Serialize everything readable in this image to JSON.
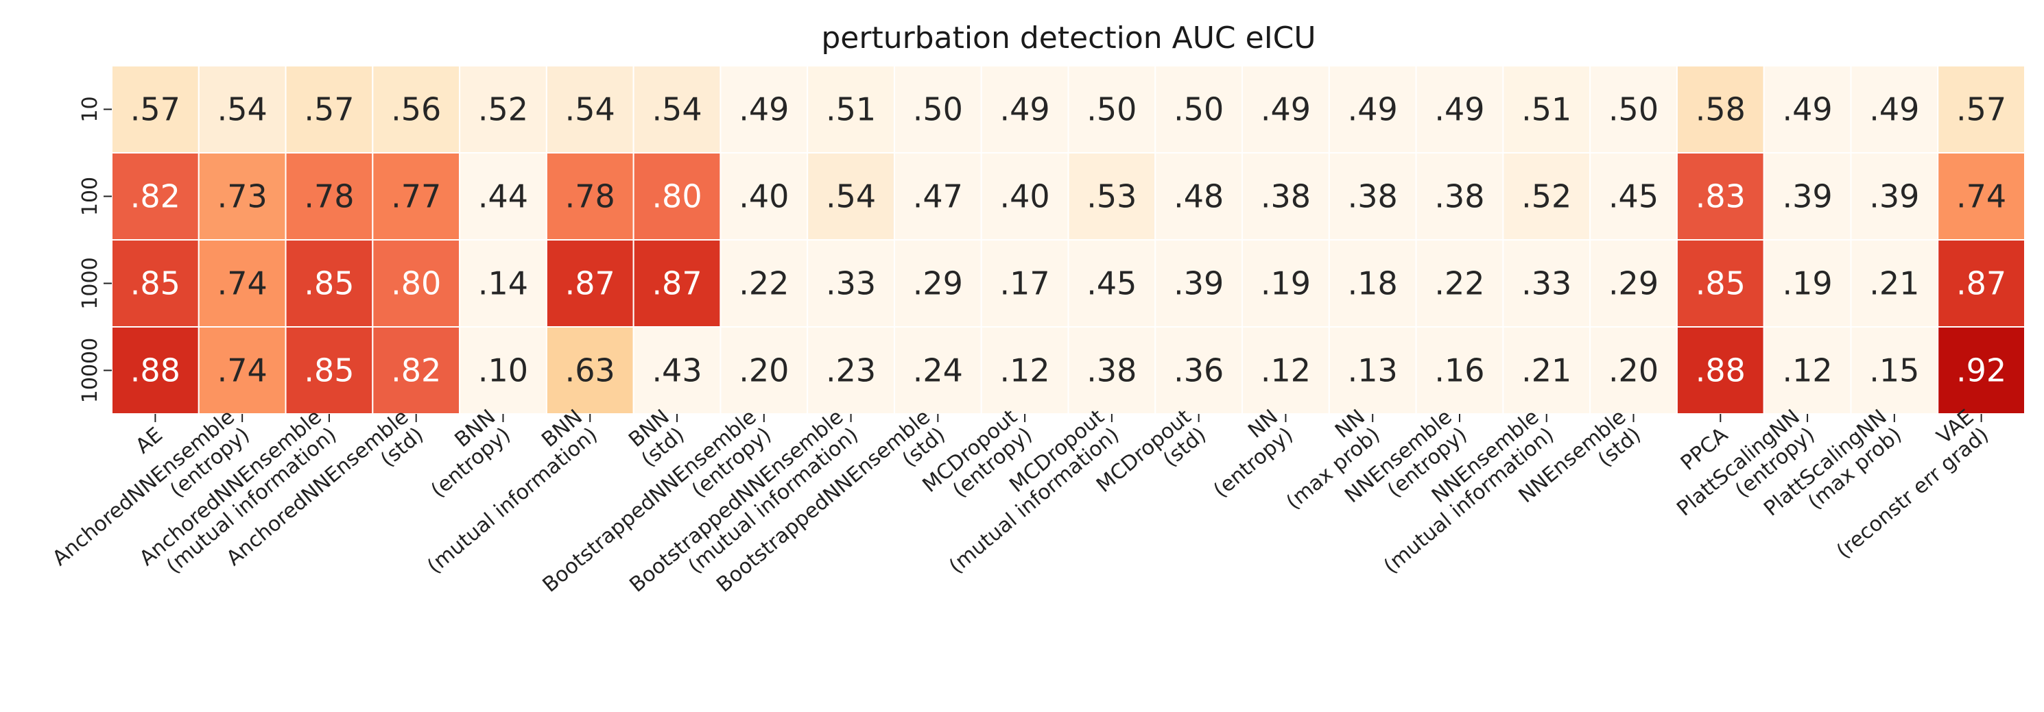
{
  "chart_data": {
    "type": "heatmap",
    "title": "perturbation detection AUC eICU",
    "colormap": "OrRd",
    "value_range": [
      0.5,
      1.0
    ],
    "x_labels": [
      [
        "AE"
      ],
      [
        "AnchoredNNEnsemble",
        "(entropy)"
      ],
      [
        "AnchoredNNEnsemble",
        "(mutual information)"
      ],
      [
        "AnchoredNNEnsemble",
        "(std)"
      ],
      [
        "BNN",
        "(entropy)"
      ],
      [
        "BNN",
        "(mutual information)"
      ],
      [
        "BNN",
        "(std)"
      ],
      [
        "BootstrappedNNEnsemble",
        "(entropy)"
      ],
      [
        "BootstrappedNNEnsemble",
        "(mutual information)"
      ],
      [
        "BootstrappedNNEnsemble",
        "(std)"
      ],
      [
        "MCDropout",
        "(entropy)"
      ],
      [
        "MCDropout",
        "(mutual information)"
      ],
      [
        "MCDropout",
        "(std)"
      ],
      [
        "NN",
        "(entropy)"
      ],
      [
        "NN",
        "(max prob)"
      ],
      [
        "NNEnsemble",
        "(entropy)"
      ],
      [
        "NNEnsemble",
        "(mutual information)"
      ],
      [
        "NNEnsemble",
        "(std)"
      ],
      [
        "PPCA"
      ],
      [
        "PlattScalingNN",
        "(entropy)"
      ],
      [
        "PlattScalingNN",
        "(max prob)"
      ],
      [
        "VAE",
        "(reconstr err grad)"
      ]
    ],
    "y_labels": [
      "10",
      "100",
      "1000",
      "10000"
    ],
    "values": [
      [
        0.57,
        0.54,
        0.57,
        0.56,
        0.52,
        0.54,
        0.54,
        0.49,
        0.51,
        0.5,
        0.49,
        0.5,
        0.5,
        0.49,
        0.49,
        0.49,
        0.51,
        0.5,
        0.58,
        0.49,
        0.49,
        0.57
      ],
      [
        0.82,
        0.73,
        0.78,
        0.77,
        0.44,
        0.78,
        0.8,
        0.4,
        0.54,
        0.47,
        0.4,
        0.53,
        0.48,
        0.38,
        0.38,
        0.38,
        0.52,
        0.45,
        0.83,
        0.39,
        0.39,
        0.74
      ],
      [
        0.85,
        0.74,
        0.85,
        0.8,
        0.14,
        0.87,
        0.87,
        0.22,
        0.33,
        0.29,
        0.17,
        0.45,
        0.39,
        0.19,
        0.18,
        0.22,
        0.33,
        0.29,
        0.85,
        0.19,
        0.21,
        0.87
      ],
      [
        0.88,
        0.74,
        0.85,
        0.82,
        0.1,
        0.63,
        0.43,
        0.2,
        0.23,
        0.24,
        0.12,
        0.38,
        0.36,
        0.12,
        0.13,
        0.16,
        0.21,
        0.2,
        0.88,
        0.12,
        0.15,
        0.92
      ]
    ],
    "annotations": [
      [
        ".57",
        ".54",
        ".57",
        ".56",
        ".52",
        ".54",
        ".54",
        ".49",
        ".51",
        ".50",
        ".49",
        ".50",
        ".50",
        ".49",
        ".49",
        ".49",
        ".51",
        ".50",
        ".58",
        ".49",
        ".49",
        ".57"
      ],
      [
        ".82",
        ".73",
        ".78",
        ".77",
        ".44",
        ".78",
        ".80",
        ".40",
        ".54",
        ".47",
        ".40",
        ".53",
        ".48",
        ".38",
        ".38",
        ".38",
        ".52",
        ".45",
        ".83",
        ".39",
        ".39",
        ".74"
      ],
      [
        ".85",
        ".74",
        ".85",
        ".80",
        ".14",
        ".87",
        ".87",
        ".22",
        ".33",
        ".29",
        ".17",
        ".45",
        ".39",
        ".19",
        ".18",
        ".22",
        ".33",
        ".29",
        ".85",
        ".19",
        ".21",
        ".87"
      ],
      [
        ".88",
        ".74",
        ".85",
        ".82",
        ".10",
        ".63",
        ".43",
        ".20",
        ".23",
        ".24",
        ".12",
        ".38",
        ".36",
        ".12",
        ".13",
        ".16",
        ".21",
        ".20",
        ".88",
        ".12",
        ".15",
        ".92"
      ]
    ],
    "grid": false,
    "colorbar": false
  }
}
